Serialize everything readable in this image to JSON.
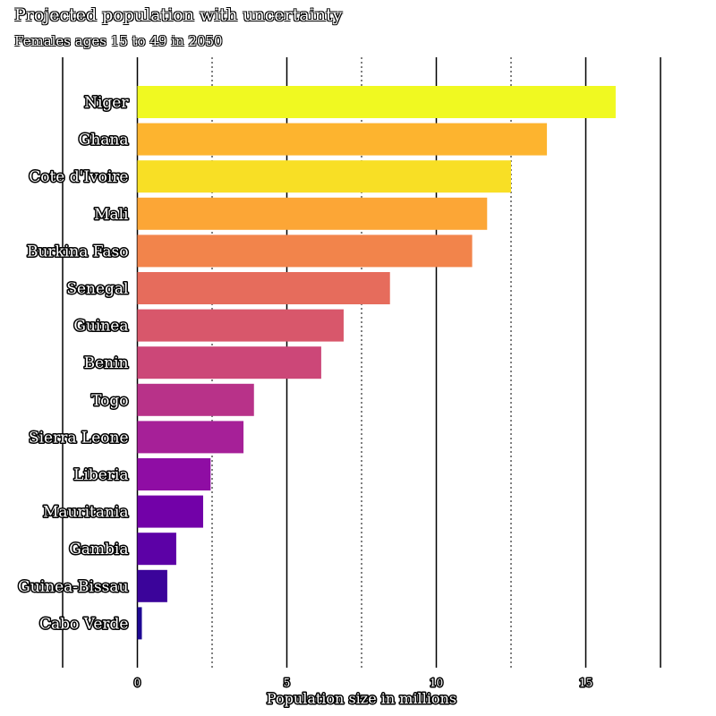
{
  "chart_data": {
    "type": "bar",
    "orientation": "horizontal",
    "title": "Projected population with uncertainty",
    "subtitle": "Females ages 15 to 49 in 2050",
    "xlabel": "Population size in millions",
    "ylabel": "",
    "xlim": [
      -2.5,
      17.5
    ],
    "xticks": [
      0,
      5,
      10,
      15
    ],
    "grid": true,
    "colormap": "plasma",
    "categories": [
      "Niger",
      "Ghana",
      "Cote d'Ivoire",
      "Mali",
      "Burkina Faso",
      "Senegal",
      "Guinea",
      "Benin",
      "Togo",
      "Sierra Leone",
      "Liberia",
      "Mauritania",
      "Gambia",
      "Guinea-Bissau",
      "Cabo Verde"
    ],
    "values": [
      16.0,
      13.7,
      12.5,
      11.7,
      11.2,
      8.45,
      6.9,
      6.15,
      3.9,
      3.55,
      2.45,
      2.2,
      1.3,
      1.0,
      0.15
    ],
    "colors": [
      "#f0f921",
      "#fdb42f",
      "#f8df25",
      "#fca636",
      "#f2844b",
      "#e66c5c",
      "#d8576b",
      "#cc4778",
      "#b83289",
      "#a62098",
      "#8f0da4",
      "#7201a8",
      "#5c01a6",
      "#3b049a",
      "#1e0893"
    ]
  }
}
